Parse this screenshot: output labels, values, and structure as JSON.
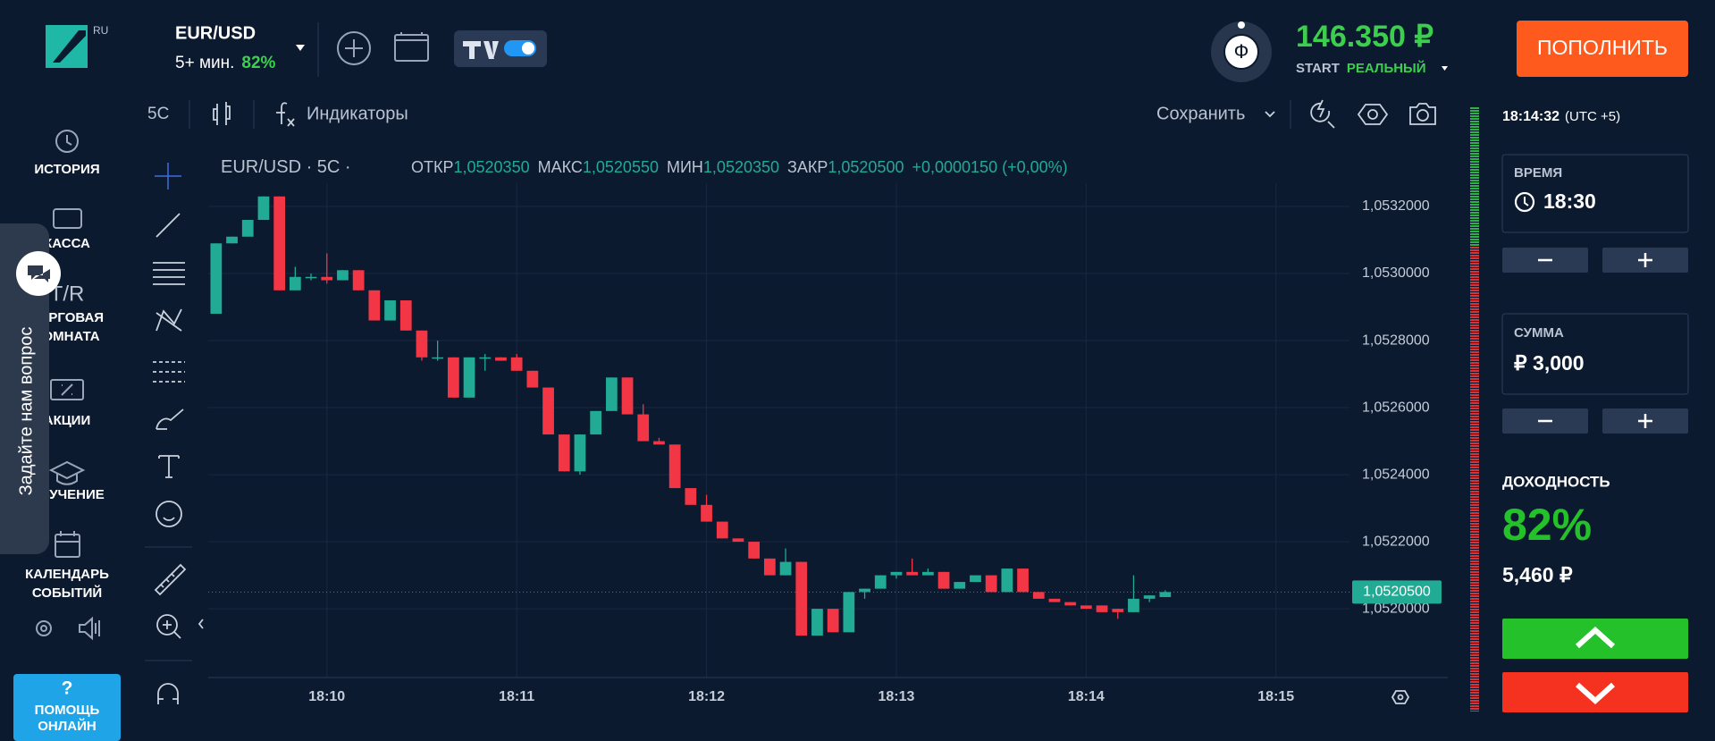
{
  "header": {
    "logo_badge": "RU",
    "asset": "EUR/USD",
    "duration": "5+ мин.",
    "payout": "82%",
    "avatar_letter": "Ф",
    "balance": "146.350 ₽",
    "account_tier": "START",
    "account_type": "РЕАЛЬНЫЙ",
    "deposit_button": "ПОПОЛНИТЬ"
  },
  "sidebar": {
    "items": [
      [
        "ИСТОРИЯ"
      ],
      [
        "КАССА"
      ],
      [
        "ТОРГОВАЯ",
        "КОМНАТА"
      ],
      [
        "АКЦИИ"
      ],
      [
        "ОБУЧЕНИЕ"
      ],
      [
        "КАЛЕНДАРЬ",
        "СОБЫТИЙ"
      ]
    ],
    "trade_icon": "T/R",
    "ask_tab": "Задайте нам вопрос",
    "help_icon": "?",
    "help": [
      "ПОМОЩЬ",
      "ОНЛАЙН"
    ]
  },
  "toolbar": {
    "interval": "5С",
    "indicators": "Индикаторы",
    "save": "Сохранить"
  },
  "legend": {
    "symbol": "EUR/USD · 5С ·",
    "open_label": "ОТКР",
    "open": "1,0520350",
    "high_label": "МАКС",
    "high": "1,0520550",
    "low_label": "МИН",
    "low": "1,0520350",
    "close_label": "ЗАКР",
    "close": "1,0520500",
    "change": "+0,0000150 (+0,00%)"
  },
  "chart_data": {
    "type": "candlestick",
    "categories": [
      null,
      null,
      null,
      null,
      null,
      null,
      null,
      "18:10",
      null,
      null,
      null,
      null,
      null,
      null,
      null,
      null,
      null,
      null,
      null,
      "18:11",
      null,
      null,
      null,
      null,
      null,
      null,
      null,
      null,
      null,
      null,
      null,
      "18:12",
      null,
      null,
      null,
      null,
      null,
      null,
      null,
      null,
      null,
      null,
      null,
      "18:13",
      null,
      null,
      null,
      null,
      null,
      null,
      null,
      null,
      null,
      null,
      null,
      "18:14",
      null,
      null,
      null,
      null,
      null,
      null,
      null,
      null,
      null,
      null,
      null,
      "18:15"
    ],
    "open": [
      1.05288,
      1.05309,
      1.05311,
      1.05316,
      1.05323,
      1.05295,
      1.05299,
      1.05299,
      1.05298,
      1.05301,
      1.05295,
      1.05286,
      1.05292,
      1.05283,
      1.05275,
      1.05275,
      1.05263,
      1.05275,
      1.05275,
      1.05275,
      1.05271,
      1.05266,
      1.05252,
      1.05241,
      1.05252,
      1.05259,
      1.05269,
      1.05258,
      1.0525,
      1.05249,
      1.05236,
      1.05231,
      1.05226,
      1.05221,
      1.0522,
      1.05215,
      1.0521,
      1.05214,
      1.05192,
      1.052,
      1.05193,
      1.05205,
      1.05206,
      1.0521,
      1.05211,
      1.0521,
      1.05211,
      1.05206,
      1.05208,
      1.0521,
      1.05205,
      1.05212,
      1.05205,
      1.05203,
      1.05202,
      1.05201,
      1.05201,
      1.052,
      1.05199,
      1.05203,
      1.052035,
      null,
      null,
      null,
      null,
      null,
      null,
      null
    ],
    "high": [
      1.05309,
      1.05311,
      1.05316,
      1.05323,
      1.05323,
      1.05302,
      1.053,
      1.05306,
      1.05301,
      1.05301,
      1.05295,
      1.05292,
      1.05292,
      1.05283,
      1.0528,
      1.05275,
      1.05275,
      1.05276,
      1.05275,
      1.05276,
      1.05271,
      1.05266,
      1.05252,
      1.05252,
      1.05259,
      1.05269,
      1.05269,
      1.05261,
      1.05251,
      1.05249,
      1.05236,
      1.05234,
      1.05226,
      1.05221,
      1.0522,
      1.05215,
      1.05218,
      1.05214,
      1.052,
      1.052,
      1.05205,
      1.05206,
      1.0521,
      1.05211,
      1.05215,
      1.05212,
      1.05211,
      1.05208,
      1.0521,
      1.0521,
      1.05212,
      1.05212,
      1.05205,
      1.05203,
      1.05202,
      1.05201,
      1.05201,
      1.052,
      1.0521,
      1.05204,
      1.052055,
      null,
      null,
      null,
      null,
      null,
      null,
      null
    ],
    "low": [
      1.05288,
      1.05309,
      1.05311,
      1.05316,
      1.05295,
      1.05295,
      1.05298,
      1.05297,
      1.05298,
      1.05295,
      1.05286,
      1.05286,
      1.05283,
      1.05274,
      1.05274,
      1.05263,
      1.05263,
      1.05271,
      1.05274,
      1.05271,
      1.05266,
      1.05252,
      1.05241,
      1.0524,
      1.05252,
      1.05259,
      1.05258,
      1.0525,
      1.05249,
      1.05236,
      1.05231,
      1.05226,
      1.05221,
      1.0522,
      1.05215,
      1.0521,
      1.0521,
      1.05192,
      1.05192,
      1.05193,
      1.05193,
      1.05203,
      1.05206,
      1.05209,
      1.0521,
      1.0521,
      1.05206,
      1.05206,
      1.05208,
      1.05205,
      1.05205,
      1.05205,
      1.05203,
      1.05202,
      1.05201,
      1.052,
      1.05199,
      1.05197,
      1.05199,
      1.05202,
      1.052035,
      null,
      null,
      null,
      null,
      null,
      null,
      null
    ],
    "close": [
      1.05309,
      1.05311,
      1.05316,
      1.05323,
      1.05295,
      1.05299,
      1.05299,
      1.05298,
      1.05301,
      1.05295,
      1.05286,
      1.05292,
      1.05283,
      1.05275,
      1.05275,
      1.05263,
      1.05275,
      1.05275,
      1.05274,
      1.05271,
      1.05266,
      1.05252,
      1.05241,
      1.05252,
      1.05259,
      1.05269,
      1.05258,
      1.0525,
      1.05249,
      1.05236,
      1.05231,
      1.05226,
      1.05221,
      1.0522,
      1.05215,
      1.0521,
      1.05214,
      1.05192,
      1.052,
      1.05193,
      1.05205,
      1.05206,
      1.0521,
      1.05211,
      1.0521,
      1.05211,
      1.05206,
      1.05208,
      1.0521,
      1.05205,
      1.05212,
      1.05205,
      1.05203,
      1.05202,
      1.05201,
      1.052,
      1.05199,
      1.05199,
      1.05203,
      1.05204,
      1.05205,
      null,
      null,
      null,
      null,
      null,
      null,
      null
    ],
    "up_color": "#22ab94",
    "down_color": "#f23645",
    "ylim": [
      1.051795,
      1.053376
    ],
    "yticks": [
      {
        "value": 1.052,
        "label": "1,0520000"
      },
      {
        "value": 1.0522,
        "label": "1,0522000"
      },
      {
        "value": 1.0524,
        "label": "1,0524000"
      },
      {
        "value": 1.0526,
        "label": "1,0526000"
      },
      {
        "value": 1.0528,
        "label": "1,0528000"
      },
      {
        "value": 1.053,
        "label": "1,0530000"
      },
      {
        "value": 1.0532,
        "label": "1,0532000"
      }
    ],
    "current_price": {
      "value": 1.05205,
      "label": "1,0520500"
    },
    "grid": true
  },
  "right_panel": {
    "clock": "18:14:32",
    "timezone": "(UTC +5)",
    "time_label": "ВРЕМЯ",
    "time": "18:30",
    "amount_label": "СУММА",
    "amount": "₽ 3,000",
    "yield_label": "ДОХОДНОСТЬ",
    "yield": "82%",
    "profit": "5,460 ₽"
  }
}
